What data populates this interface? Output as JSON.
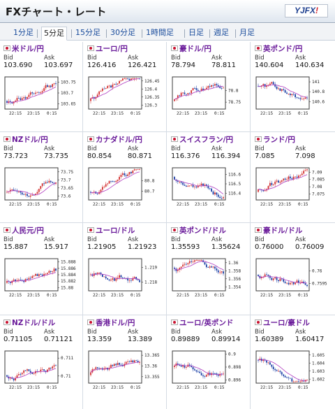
{
  "header": {
    "title": "FXチャート・レート",
    "logo_main": "YJFX",
    "logo_mark": "!"
  },
  "tabs": [
    {
      "label": "1分足",
      "active": false
    },
    {
      "label": "5分足",
      "active": true
    },
    {
      "label": "15分足",
      "active": false
    },
    {
      "label": "30分足",
      "active": false
    },
    {
      "label": "1時間足",
      "active": false
    },
    {
      "label": "日足",
      "active": false
    },
    {
      "label": "週足",
      "active": false
    },
    {
      "label": "月足",
      "active": false
    }
  ],
  "labels": {
    "bid": "Bid",
    "ask": "Ask"
  },
  "x_ticks": [
    "22:15",
    "23:15",
    "0:15"
  ],
  "colors": {
    "pair_text": "#6a1b9a",
    "candle_up": "#d32f2f",
    "candle_down": "#1a3fa6",
    "average": "#b03cc0"
  },
  "panels": [
    {
      "pair": "米ドル/円",
      "bid": "103.690",
      "ask": "103.697",
      "chart_data": {
        "type": "candlestick",
        "y_ticks": [
          "103.75",
          "103.7",
          "103.65"
        ],
        "ylim": [
          103.625,
          103.775
        ],
        "trend": "up"
      }
    },
    {
      "pair": "ユーロ/円",
      "bid": "126.416",
      "ask": "126.421",
      "chart_data": {
        "type": "candlestick",
        "y_ticks": [
          "126.45",
          "126.4",
          "126.35",
          "126.3"
        ],
        "ylim": [
          126.275,
          126.475
        ],
        "trend": "up"
      }
    },
    {
      "pair": "豪ドル/円",
      "bid": "78.794",
      "ask": "78.811",
      "chart_data": {
        "type": "candlestick",
        "y_ticks": [
          "78.8",
          "78.75"
        ],
        "ylim": [
          78.72,
          78.86
        ],
        "trend": "up"
      }
    },
    {
      "pair": "英ポンド/円",
      "bid": "140.604",
      "ask": "140.634",
      "chart_data": {
        "type": "candlestick",
        "y_ticks": [
          "141",
          "140.8",
          "140.6"
        ],
        "ylim": [
          140.45,
          141.1
        ],
        "trend": "down"
      }
    },
    {
      "pair": "NZドル/円",
      "bid": "73.723",
      "ask": "73.735",
      "chart_data": {
        "type": "candlestick",
        "y_ticks": [
          "73.75",
          "73.7",
          "73.65",
          "73.6"
        ],
        "ylim": [
          73.575,
          73.775
        ],
        "trend": "up"
      }
    },
    {
      "pair": "カナダドル/円",
      "bid": "80.854",
      "ask": "80.871",
      "chart_data": {
        "type": "candlestick",
        "y_ticks": [
          "80.8",
          "80.7"
        ],
        "ylim": [
          80.62,
          80.92
        ],
        "trend": "up"
      }
    },
    {
      "pair": "スイスフラン/円",
      "bid": "116.376",
      "ask": "116.394",
      "chart_data": {
        "type": "candlestick",
        "y_ticks": [
          "116.6",
          "116.5",
          "116.4"
        ],
        "ylim": [
          116.33,
          116.67
        ],
        "trend": "down"
      }
    },
    {
      "pair": "ランド/円",
      "bid": "7.085",
      "ask": "7.098",
      "chart_data": {
        "type": "candlestick",
        "y_ticks": [
          "7.09",
          "7.085",
          "7.08",
          "7.075"
        ],
        "ylim": [
          7.071,
          7.093
        ],
        "trend": "up"
      }
    },
    {
      "pair": "人民元/円",
      "bid": "15.887",
      "ask": "15.917",
      "chart_data": {
        "type": "candlestick",
        "y_ticks": [
          "15.888",
          "15.886",
          "15.884",
          "15.882",
          "15.88"
        ],
        "ylim": [
          15.879,
          15.889
        ],
        "trend": "up"
      }
    },
    {
      "pair": "ユーロ/ドル",
      "bid": "1.21905",
      "ask": "1.21923",
      "chart_data": {
        "type": "candlestick",
        "y_ticks": [
          "1.219",
          "1.218"
        ],
        "ylim": [
          1.2174,
          1.2196
        ],
        "trend": "flat"
      }
    },
    {
      "pair": "英ポンド/ドル",
      "bid": "1.35593",
      "ask": "1.35624",
      "chart_data": {
        "type": "candlestick",
        "y_ticks": [
          "1.36",
          "1.358",
          "1.356",
          "1.354"
        ],
        "ylim": [
          1.353,
          1.361
        ],
        "trend": "down"
      }
    },
    {
      "pair": "豪ドル/ドル",
      "bid": "0.76000",
      "ask": "0.76009",
      "chart_data": {
        "type": "candlestick",
        "y_ticks": [
          "0.76",
          "0.7595"
        ],
        "ylim": [
          0.7592,
          0.7605
        ],
        "trend": "flat"
      }
    },
    {
      "pair": "NZドル/ドル",
      "bid": "0.71105",
      "ask": "0.71121",
      "chart_data": {
        "type": "candlestick",
        "y_ticks": [
          "0.711",
          "0.71"
        ],
        "ylim": [
          0.7096,
          0.7114
        ],
        "trend": "up"
      }
    },
    {
      "pair": "香港ドル/円",
      "bid": "13.359",
      "ask": "13.389",
      "chart_data": {
        "type": "candlestick",
        "y_ticks": [
          "13.365",
          "13.36",
          "13.355"
        ],
        "ylim": [
          13.352,
          13.367
        ],
        "trend": "up"
      }
    },
    {
      "pair": "ユーロ/英ポンド",
      "bid": "0.89889",
      "ask": "0.89914",
      "chart_data": {
        "type": "candlestick",
        "y_ticks": [
          "0.9",
          "0.898",
          "0.896"
        ],
        "ylim": [
          0.8955,
          0.9005
        ],
        "trend": "flat"
      }
    },
    {
      "pair": "ユーロ/豪ドル",
      "bid": "1.60389",
      "ask": "1.60417",
      "chart_data": {
        "type": "candlestick",
        "y_ticks": [
          "1.605",
          "1.604",
          "1.603",
          "1.602"
        ],
        "ylim": [
          1.6015,
          1.6055
        ],
        "trend": "down"
      }
    }
  ]
}
